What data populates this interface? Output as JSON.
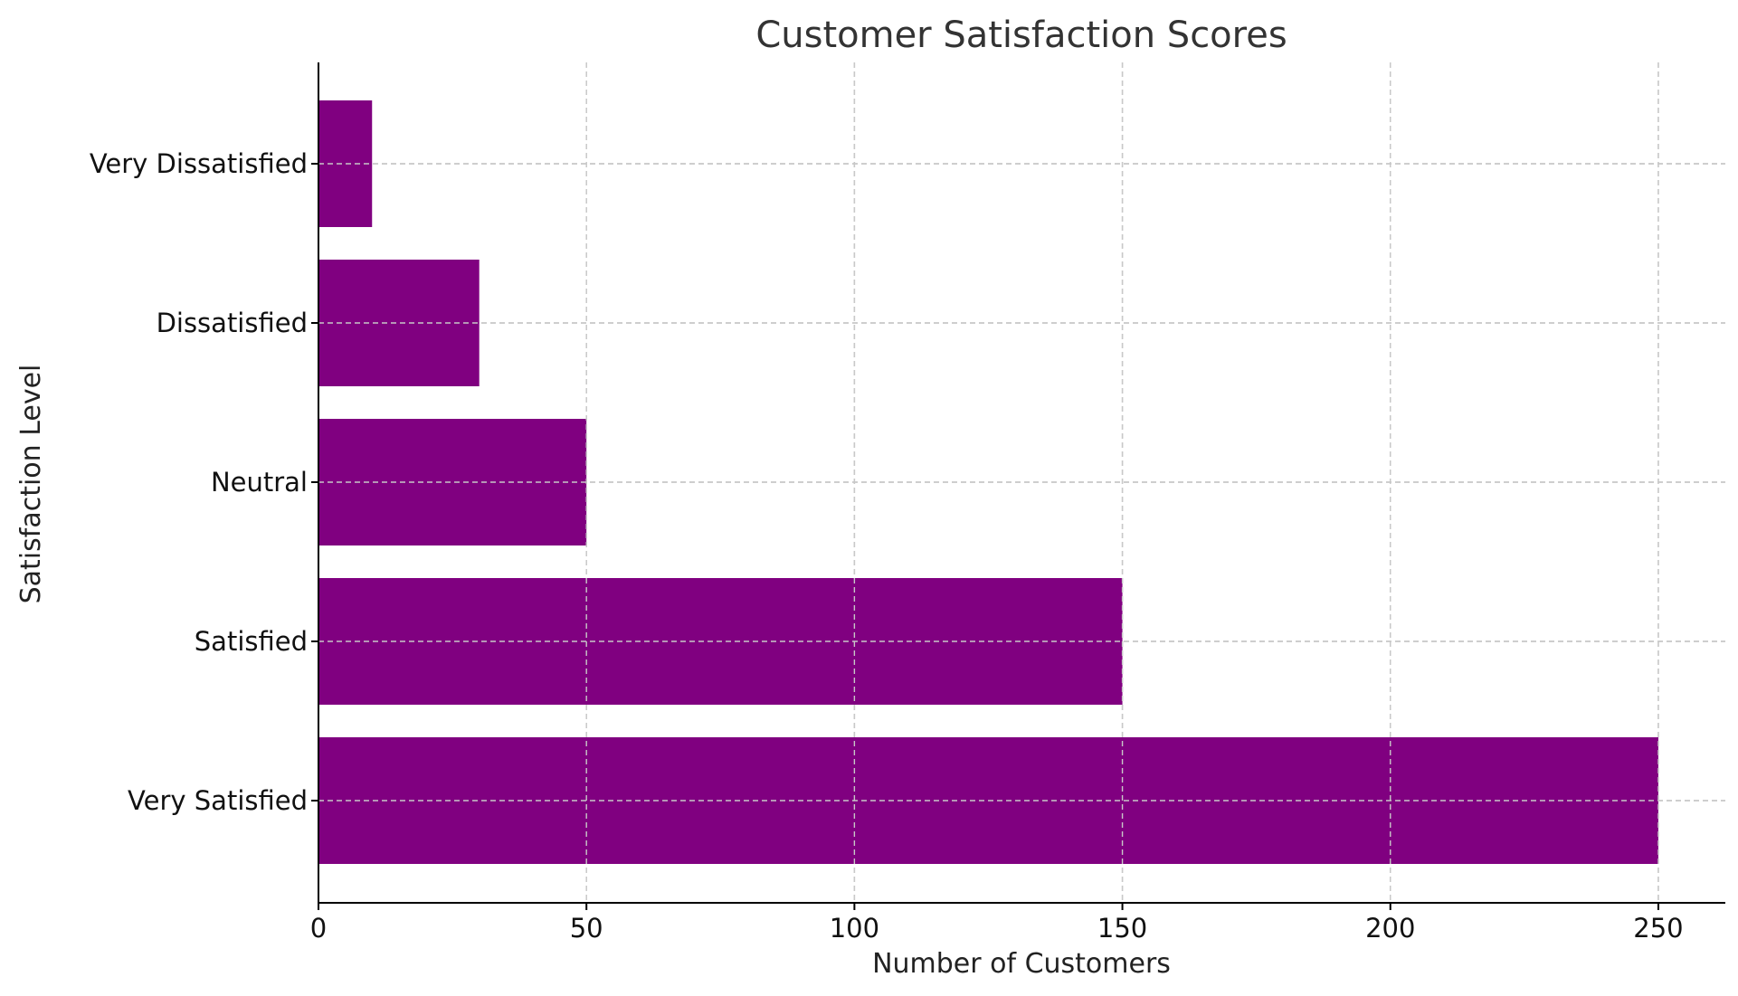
{
  "chart_data": {
    "type": "bar",
    "orientation": "horizontal",
    "title": "Customer Satisfaction Scores",
    "xlabel": "Number of Customers",
    "ylabel": "Satisfaction Level",
    "categories": [
      "Very Satisfied",
      "Satisfied",
      "Neutral",
      "Dissatisfied",
      "Very Dissatisfied"
    ],
    "values": [
      250,
      150,
      50,
      30,
      10
    ],
    "xlim": [
      0,
      262.5
    ],
    "xticks": [
      0,
      50,
      100,
      150,
      200,
      250
    ],
    "bar_color": "#800080",
    "grid": true,
    "legend": "none"
  }
}
